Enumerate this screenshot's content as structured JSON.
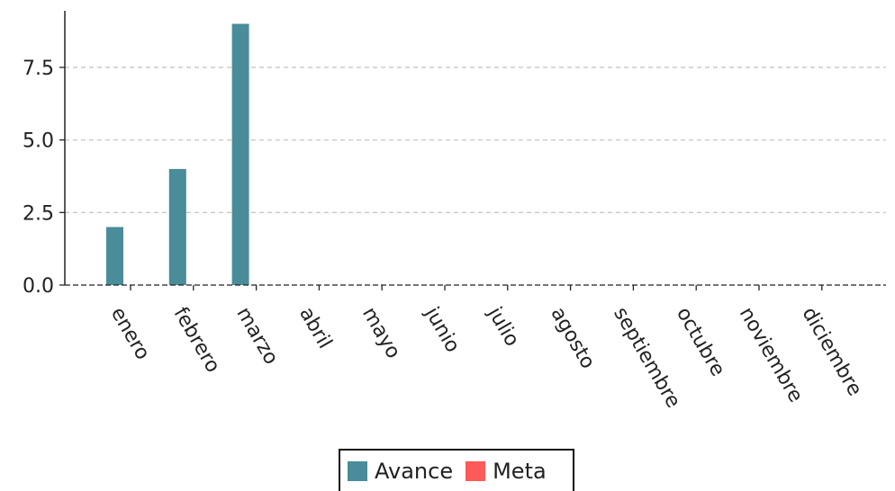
{
  "chart_data": {
    "type": "bar",
    "categories": [
      "enero",
      "febrero",
      "marzo",
      "abril",
      "mayo",
      "junio",
      "julio",
      "agosto",
      "septiembre",
      "octubre",
      "noviembre",
      "diciembre"
    ],
    "series": [
      {
        "name": "Avance",
        "color": "#4a8c99",
        "values": [
          2,
          4,
          9,
          0,
          0,
          0,
          0,
          0,
          0,
          0,
          0,
          0
        ]
      },
      {
        "name": "Meta",
        "color": "#ff5a5a",
        "values": [
          0,
          0,
          0,
          0,
          0,
          0,
          0,
          0,
          0,
          0,
          0,
          0
        ]
      }
    ],
    "y_ticks": [
      "0.0",
      "2.5",
      "5.0",
      "7.5"
    ],
    "y_tick_values": [
      0,
      2.5,
      5,
      7.5
    ],
    "ylim": [
      0,
      9.45
    ],
    "grid": "horizontal dashed",
    "legend_position": "bottom-center"
  }
}
